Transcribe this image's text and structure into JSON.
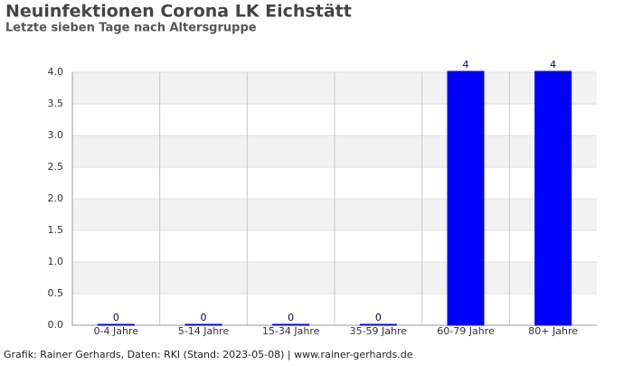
{
  "chart_data": {
    "type": "bar",
    "title": "Neuinfektionen Corona LK Eichstätt",
    "subtitle": "Letzte sieben Tage nach Altersgruppe",
    "footer": "Grafik: Rainer Gerhards, Daten: RKI (Stand: 2023-05-08) | www.rainer-gerhards.de",
    "categories": [
      "0-4 Jahre",
      "5-14 Jahre",
      "15-34 Jahre",
      "35-59 Jahre",
      "60-79 Jahre",
      "80+ Jahre"
    ],
    "values": [
      0,
      0,
      0,
      0,
      4,
      4
    ],
    "color": "#0000ff",
    "ylim": [
      0,
      4
    ],
    "yticks": [
      {
        "value": 0,
        "label": "0.0"
      },
      {
        "value": 0.5,
        "label": "0.5"
      },
      {
        "value": 1,
        "label": "1.0"
      },
      {
        "value": 1.5,
        "label": "1.5"
      },
      {
        "value": 2,
        "label": "2.0"
      },
      {
        "value": 2.5,
        "label": "2.5"
      },
      {
        "value": 3,
        "label": "3.0"
      },
      {
        "value": 3.5,
        "label": "3.5"
      },
      {
        "value": 4,
        "label": "4.0"
      }
    ],
    "grid": true
  }
}
